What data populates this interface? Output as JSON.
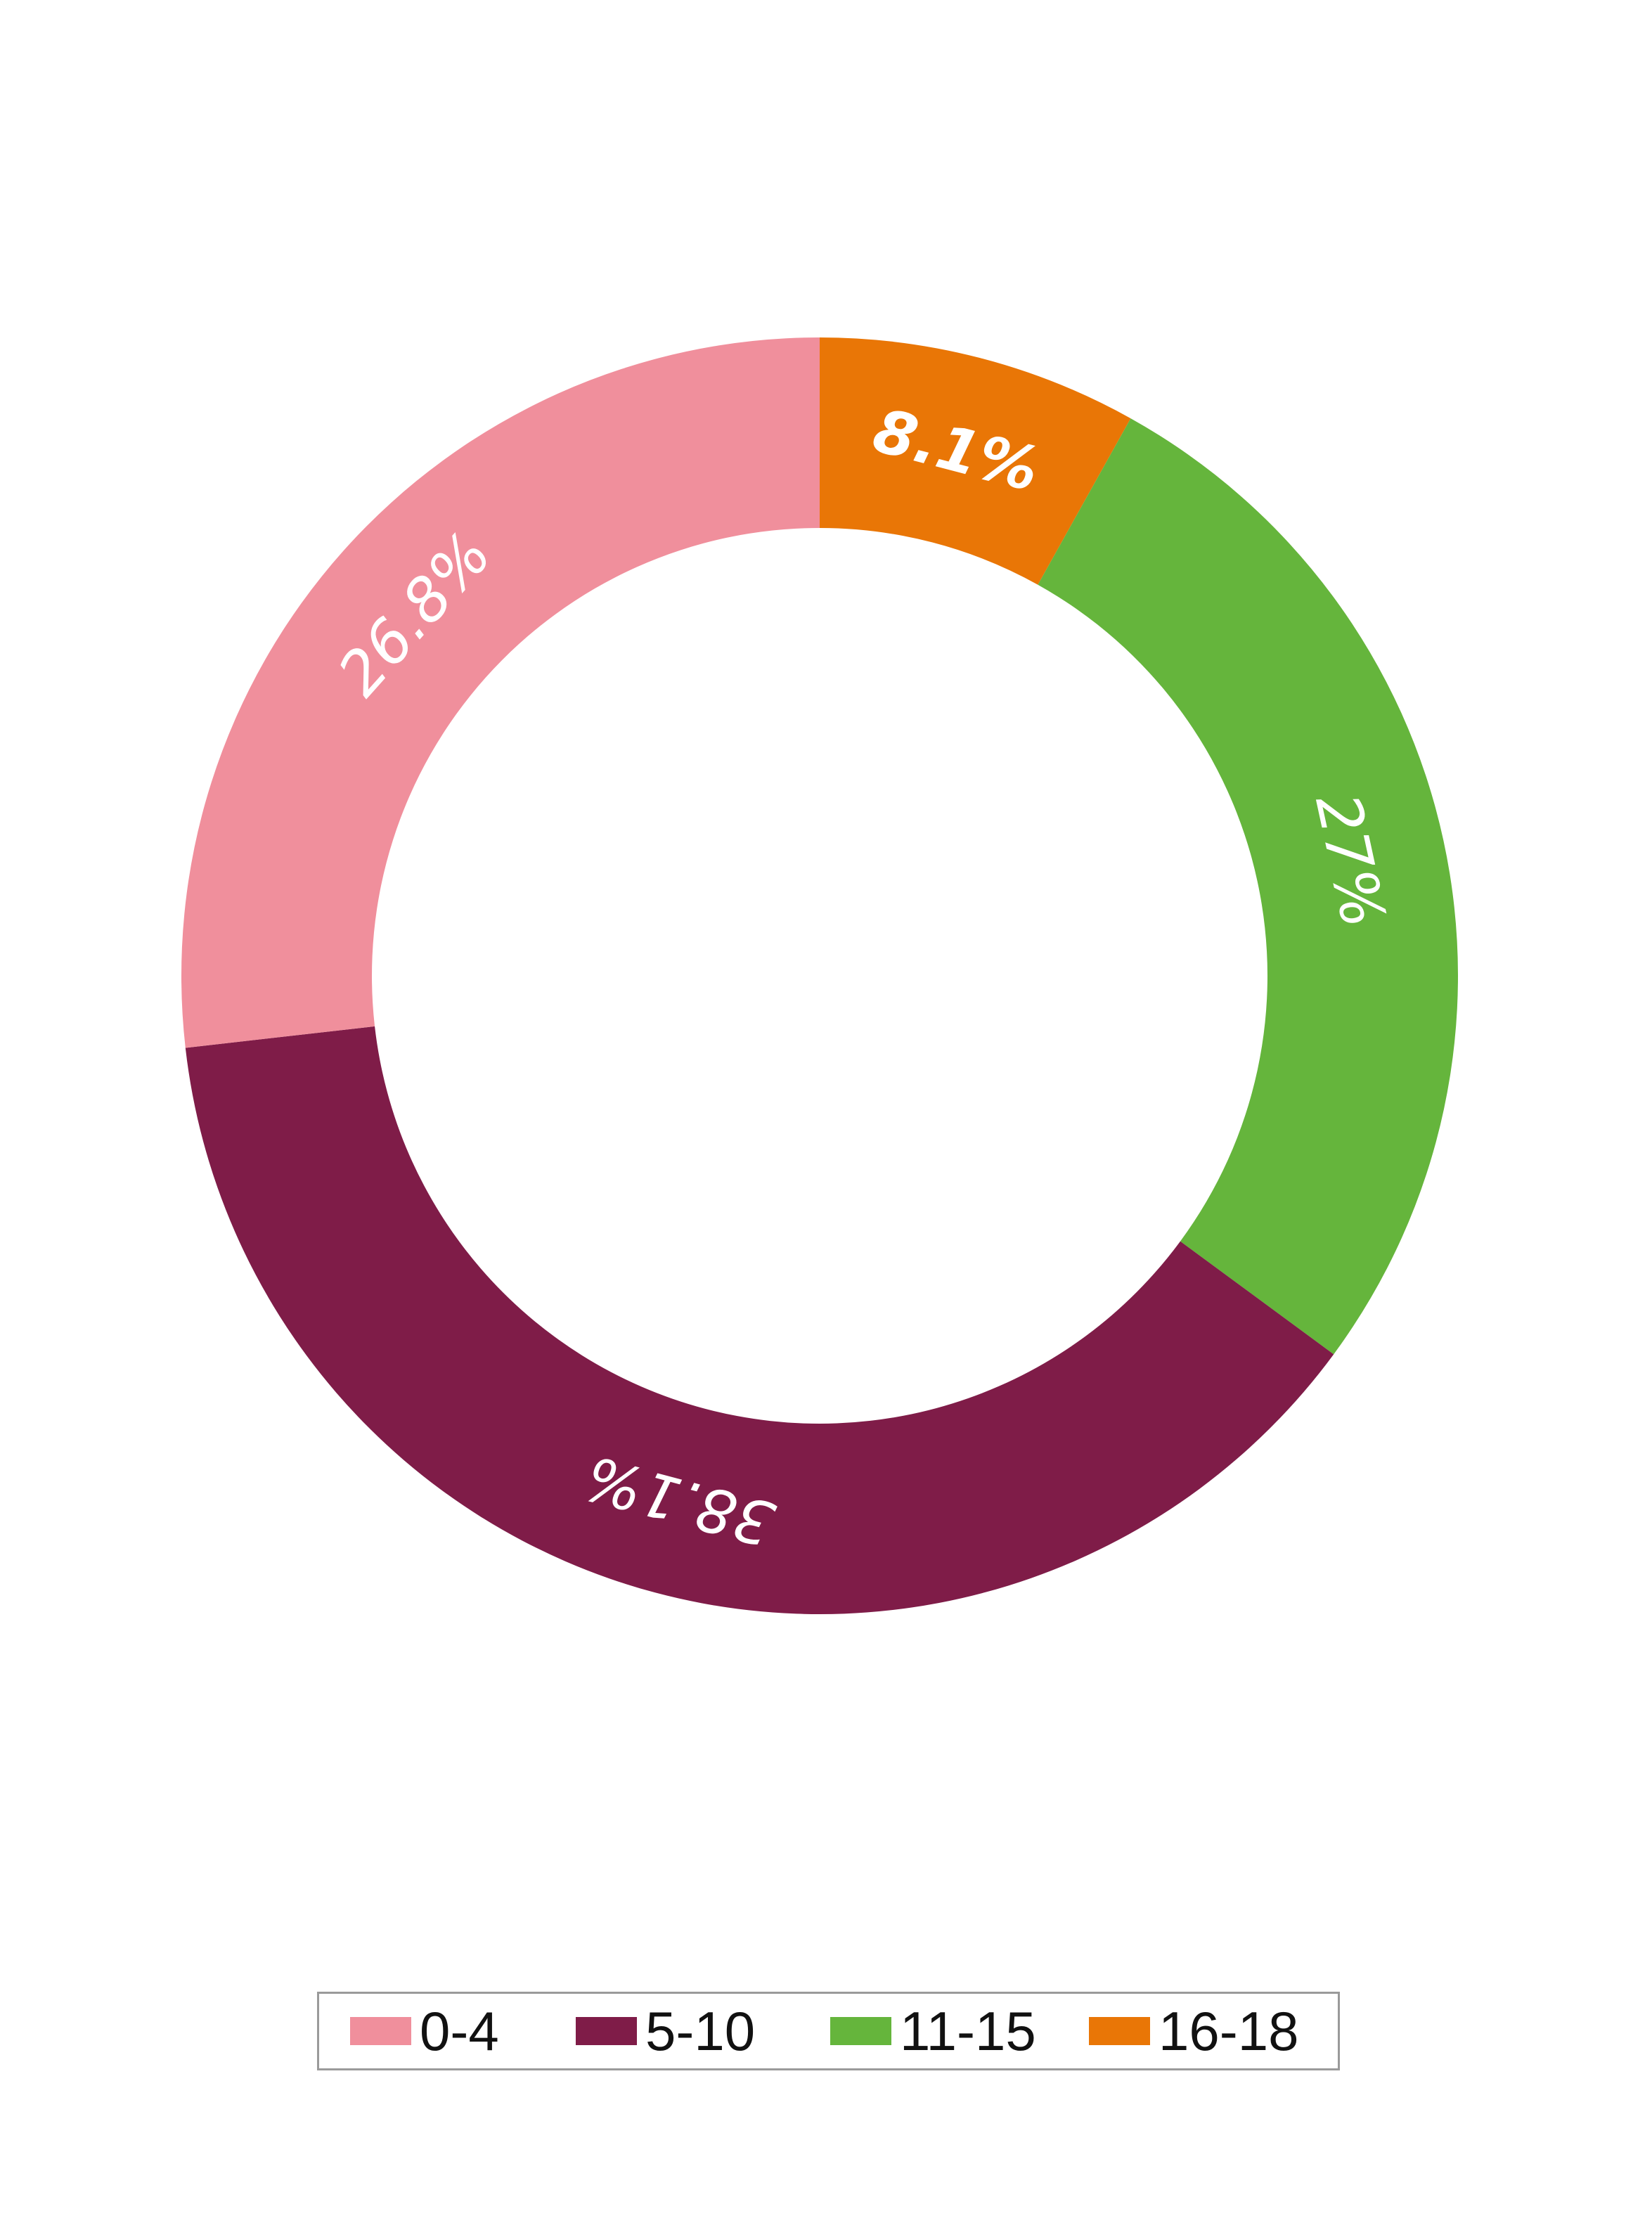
{
  "chart_data": {
    "type": "pie",
    "variant": "donut",
    "categories": [
      "0-4",
      "5-10",
      "11-15",
      "16-18"
    ],
    "values": [
      26.8,
      38.1,
      27,
      8.1
    ],
    "data_labels": [
      "26.8%",
      "38.1%",
      "27%",
      "8.1%"
    ],
    "colors": [
      "#f08f9c",
      "#7f1c48",
      "#65b53c",
      "#e97606"
    ],
    "start": "top, clockwise, 16-18 first",
    "legend": "bottom"
  },
  "legend": {
    "items": [
      {
        "label": "0-4",
        "color": "#f08f9c"
      },
      {
        "label": "5-10",
        "color": "#7f1c48"
      },
      {
        "label": "11-15",
        "color": "#65b53c"
      },
      {
        "label": "16-18",
        "color": "#e97606"
      }
    ]
  }
}
